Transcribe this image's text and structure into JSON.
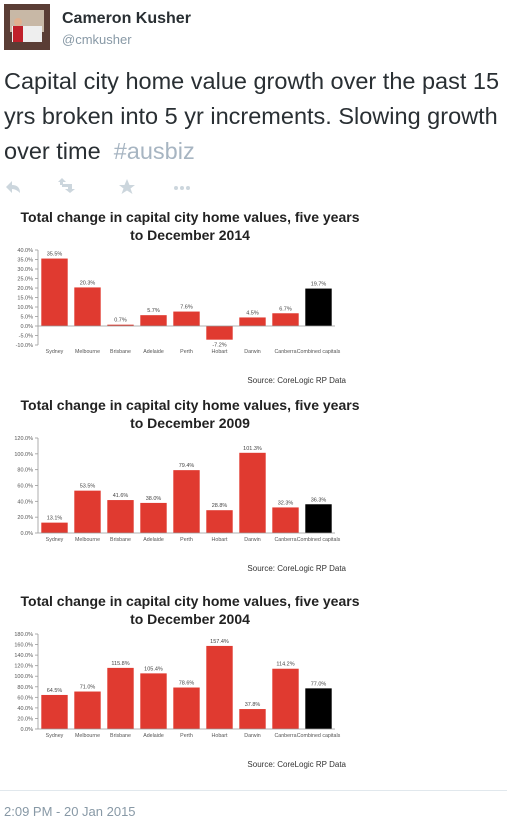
{
  "tweet": {
    "name": "Cameron Kusher",
    "handle": "@cmkusher",
    "text": "Capital city home value growth over the past 15 yrs broken into 5 yr increments. Slowing growth over time",
    "hashtag": "#ausbiz",
    "timestamp": "2:09 PM - 20 Jan 2015"
  },
  "chart_data": [
    {
      "type": "bar",
      "title": "Total change in capital city home values, five years to December 2014",
      "categories": [
        "Sydney",
        "Melbourne",
        "Brisbane",
        "Adelaide",
        "Perth",
        "Hobart",
        "Darwin",
        "Canberra",
        "Combined capitals"
      ],
      "values": [
        35.5,
        20.3,
        0.7,
        5.7,
        7.6,
        -7.2,
        4.5,
        6.7,
        19.7
      ],
      "value_labels": [
        "35.5%",
        "20.3%",
        "0.7%",
        "5.7%",
        "7.6%",
        "-7.2%",
        "4.5%",
        "6.7%",
        "19.7%"
      ],
      "colors": [
        "#e03a30",
        "#e03a30",
        "#e03a30",
        "#e03a30",
        "#e03a30",
        "#e03a30",
        "#e03a30",
        "#e03a30",
        "#000000"
      ],
      "ylim": [
        -10,
        40
      ],
      "yticks": [
        {
          "value": -10,
          "label": "-10.0%"
        },
        {
          "value": -5,
          "label": "-5.0%"
        },
        {
          "value": 0,
          "label": "0.0%"
        },
        {
          "value": 5,
          "label": "5.0%"
        },
        {
          "value": 10,
          "label": "10.0%"
        },
        {
          "value": 15,
          "label": "15.0%"
        },
        {
          "value": 20,
          "label": "20.0%"
        },
        {
          "value": 25,
          "label": "25.0%"
        },
        {
          "value": 30,
          "label": "30.0%"
        },
        {
          "value": 35,
          "label": "35.0%"
        },
        {
          "value": 40,
          "label": "40.0%"
        }
      ],
      "source": "Source: CoreLogic RP Data"
    },
    {
      "type": "bar",
      "title": "Total change in capital city home values, five years to December 2009",
      "categories": [
        "Sydney",
        "Melbourne",
        "Brisbane",
        "Adelaide",
        "Perth",
        "Hobart",
        "Darwin",
        "Canberra",
        "Combined capitals"
      ],
      "values": [
        13.1,
        53.5,
        41.6,
        38.0,
        79.4,
        28.8,
        101.3,
        32.3,
        36.3
      ],
      "value_labels": [
        "13.1%",
        "53.5%",
        "41.6%",
        "38.0%",
        "79.4%",
        "28.8%",
        "101.3%",
        "32.3%",
        "36.3%"
      ],
      "colors": [
        "#e03a30",
        "#e03a30",
        "#e03a30",
        "#e03a30",
        "#e03a30",
        "#e03a30",
        "#e03a30",
        "#e03a30",
        "#000000"
      ],
      "ylim": [
        0,
        120
      ],
      "yticks": [
        {
          "value": 0,
          "label": "0.0%"
        },
        {
          "value": 20,
          "label": "20.0%"
        },
        {
          "value": 40,
          "label": "40.0%"
        },
        {
          "value": 60,
          "label": "60.0%"
        },
        {
          "value": 80,
          "label": "80.0%"
        },
        {
          "value": 100,
          "label": "100.0%"
        },
        {
          "value": 120,
          "label": "120.0%"
        }
      ],
      "source": "Source: CoreLogic RP Data"
    },
    {
      "type": "bar",
      "title": "Total change in capital city home values, five years to December 2004",
      "categories": [
        "Sydney",
        "Melbourne",
        "Brisbane",
        "Adelaide",
        "Perth",
        "Hobart",
        "Darwin",
        "Canberra",
        "Combined capitals"
      ],
      "values": [
        64.5,
        71.0,
        115.8,
        105.4,
        78.6,
        157.4,
        37.8,
        114.2,
        77.0
      ],
      "value_labels": [
        "64.5%",
        "71.0%",
        "115.8%",
        "105.4%",
        "78.6%",
        "157.4%",
        "37.8%",
        "114.2%",
        "77.0%"
      ],
      "colors": [
        "#e03a30",
        "#e03a30",
        "#e03a30",
        "#e03a30",
        "#e03a30",
        "#e03a30",
        "#e03a30",
        "#e03a30",
        "#000000"
      ],
      "ylim": [
        0,
        180
      ],
      "yticks": [
        {
          "value": 0,
          "label": "0.0%"
        },
        {
          "value": 20,
          "label": "20.0%"
        },
        {
          "value": 40,
          "label": "40.0%"
        },
        {
          "value": 60,
          "label": "60.0%"
        },
        {
          "value": 80,
          "label": "80.0%"
        },
        {
          "value": 100,
          "label": "100.0%"
        },
        {
          "value": 120,
          "label": "120.0%"
        },
        {
          "value": 140,
          "label": "140.0%"
        },
        {
          "value": 160,
          "label": "160.0%"
        },
        {
          "value": 180,
          "label": "180.0%"
        }
      ],
      "source": "Source: CoreLogic RP Data"
    }
  ]
}
